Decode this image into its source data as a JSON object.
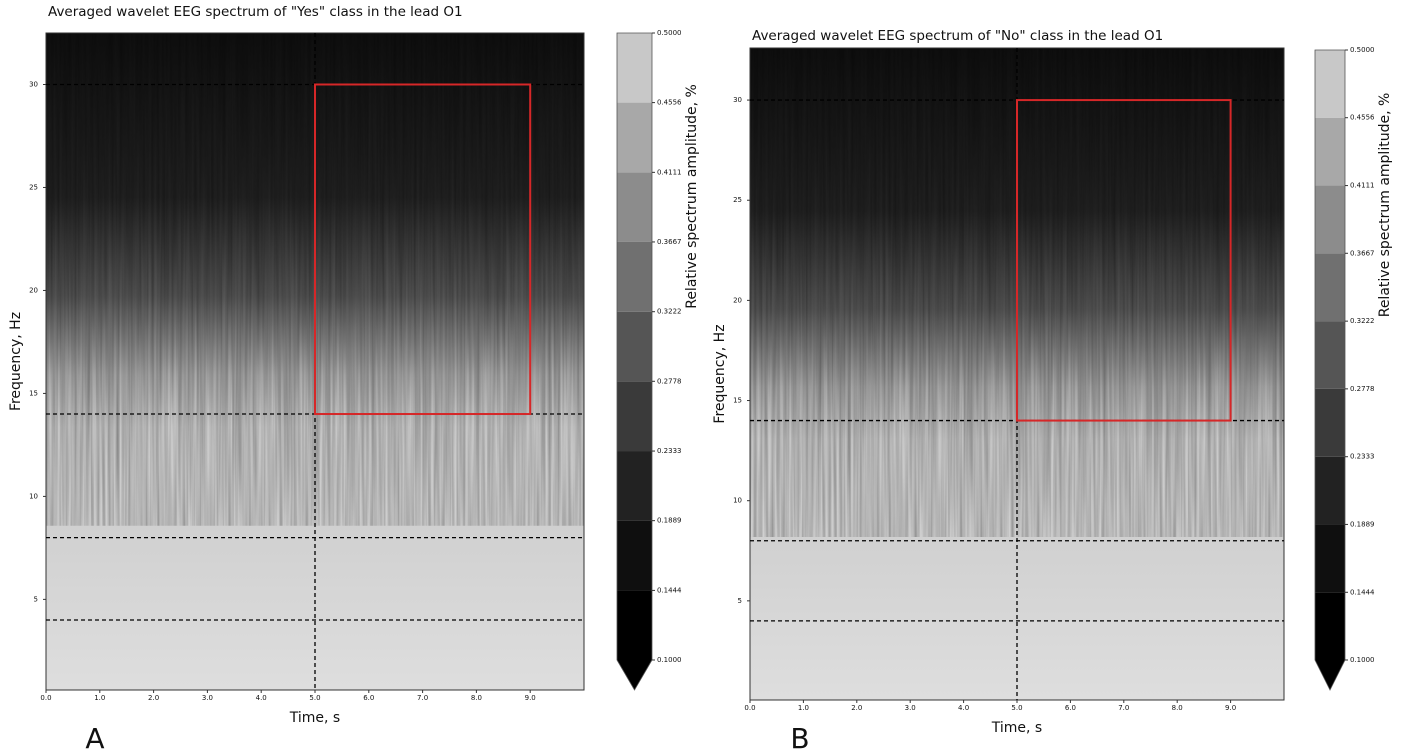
{
  "chart_data": [
    {
      "type": "heatmap",
      "panel_label": "A",
      "title": "Averaged wavelet EEG spectrum of \"Yes\" class in the lead O1",
      "xlabel": "Time, s",
      "ylabel": "Frequency, Hz",
      "colorbar_label": "Relative spectrum amplitude, %",
      "xlim": [
        0,
        10
      ],
      "ylim": [
        0.6,
        32.5
      ],
      "xticks": [
        {
          "value": 0,
          "label": "0.0"
        },
        {
          "value": 1,
          "label": "1.0"
        },
        {
          "value": 2,
          "label": "2.0"
        },
        {
          "value": 3,
          "label": "3.0"
        },
        {
          "value": 4,
          "label": "4.0"
        },
        {
          "value": 5,
          "label": "5.0"
        },
        {
          "value": 6,
          "label": "6.0"
        },
        {
          "value": 7,
          "label": "7.0"
        },
        {
          "value": 8,
          "label": "8.0"
        },
        {
          "value": 9,
          "label": "9.0"
        }
      ],
      "yticks": [
        5,
        10,
        15,
        20,
        25,
        30
      ],
      "colorbar_ticks": [
        {
          "value": 0.1,
          "label": "0.1000"
        },
        {
          "value": 0.1444,
          "label": "0.1444"
        },
        {
          "value": 0.1889,
          "label": "0.1889"
        },
        {
          "value": 0.2333,
          "label": "0.2333"
        },
        {
          "value": 0.2778,
          "label": "0.2778"
        },
        {
          "value": 0.3222,
          "label": "0.3222"
        },
        {
          "value": 0.3667,
          "label": "0.3667"
        },
        {
          "value": 0.4111,
          "label": "0.4111"
        },
        {
          "value": 0.4556,
          "label": "0.4556"
        },
        {
          "value": 0.5,
          "label": "0.5000"
        }
      ],
      "colorbar_colors": [
        "#000000",
        "#0f0f0f",
        "#222222",
        "#3a3a3a",
        "#555555",
        "#707070",
        "#8c8c8c",
        "#a8a8a8",
        "#c8c8c8"
      ],
      "hlines": [
        4,
        8,
        14,
        30
      ],
      "vline": 5,
      "box": {
        "x": [
          5,
          9
        ],
        "y": [
          14,
          30
        ],
        "color": "#d62728"
      }
    },
    {
      "type": "heatmap",
      "panel_label": "B",
      "title": "Averaged wavelet EEG spectrum of \"No\" class in the lead O1",
      "xlabel": "Time, s",
      "ylabel": "Frequency, Hz",
      "colorbar_label": "Relative spectrum amplitude, %",
      "xlim": [
        0,
        10
      ],
      "ylim": [
        0.05,
        32.6
      ],
      "xticks": [
        {
          "value": 0,
          "label": "0.0"
        },
        {
          "value": 1,
          "label": "1.0"
        },
        {
          "value": 2,
          "label": "2.0"
        },
        {
          "value": 3,
          "label": "3.0"
        },
        {
          "value": 4,
          "label": "4.0"
        },
        {
          "value": 5,
          "label": "5.0"
        },
        {
          "value": 6,
          "label": "6.0"
        },
        {
          "value": 7,
          "label": "7.0"
        },
        {
          "value": 8,
          "label": "8.0"
        },
        {
          "value": 9,
          "label": "9.0"
        }
      ],
      "yticks": [
        5,
        10,
        15,
        20,
        25,
        30
      ],
      "colorbar_ticks": [
        {
          "value": 0.1,
          "label": "0.1000"
        },
        {
          "value": 0.1444,
          "label": "0.1444"
        },
        {
          "value": 0.1889,
          "label": "0.1889"
        },
        {
          "value": 0.2333,
          "label": "0.2333"
        },
        {
          "value": 0.2778,
          "label": "0.2778"
        },
        {
          "value": 0.3222,
          "label": "0.3222"
        },
        {
          "value": 0.3667,
          "label": "0.3667"
        },
        {
          "value": 0.4111,
          "label": "0.4111"
        },
        {
          "value": 0.4556,
          "label": "0.4556"
        },
        {
          "value": 0.5,
          "label": "0.5000"
        }
      ],
      "colorbar_colors": [
        "#000000",
        "#0f0f0f",
        "#222222",
        "#3a3a3a",
        "#555555",
        "#707070",
        "#8c8c8c",
        "#a8a8a8",
        "#c8c8c8"
      ],
      "hlines": [
        4,
        8,
        14,
        30
      ],
      "vline": 5,
      "box": {
        "x": [
          5,
          9
        ],
        "y": [
          14,
          30
        ],
        "color": "#d62728"
      }
    }
  ]
}
